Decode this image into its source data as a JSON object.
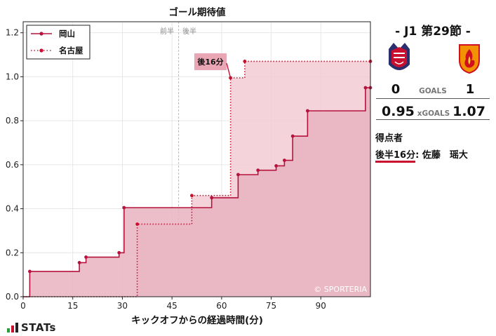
{
  "chart_data": {
    "type": "step",
    "title": "ゴール期待値",
    "xlabel": "キックオフからの経過時間(分)",
    "ylabel": "",
    "xlim": [
      0,
      105
    ],
    "ylim": [
      0,
      1.25
    ],
    "xticks": [
      0,
      15,
      30,
      45,
      60,
      75,
      90
    ],
    "yticks": [
      0.0,
      0.2,
      0.4,
      0.6,
      0.8,
      1.0,
      1.2
    ],
    "grid": true,
    "legend_position": "top-left",
    "halftime_labels": {
      "first": "前半",
      "second": "後半",
      "x": 47
    },
    "annotation": {
      "text": "後16分",
      "x": 62.7,
      "y": 0.995
    },
    "watermark": "© SPORTERIA",
    "series": [
      {
        "name": "岡山",
        "style": "solid",
        "color": "#b5123c",
        "fill": "#e7b3c1",
        "points": [
          [
            2,
            0.115
          ],
          [
            17,
            0.155
          ],
          [
            19,
            0.18
          ],
          [
            29,
            0.2
          ],
          [
            30.5,
            0.405
          ],
          [
            57,
            0.45
          ],
          [
            65,
            0.555
          ],
          [
            71,
            0.575
          ],
          [
            76.5,
            0.595
          ],
          [
            79,
            0.62
          ],
          [
            81.5,
            0.73
          ],
          [
            86,
            0.845
          ],
          [
            103.5,
            0.95
          ],
          [
            105,
            0.95
          ]
        ]
      },
      {
        "name": "名古屋",
        "style": "dotted",
        "color": "#c8102e",
        "fill": "#f3cbd4",
        "points": [
          [
            34.5,
            0.33
          ],
          [
            51,
            0.46
          ],
          [
            62.7,
            0.995
          ],
          [
            67,
            1.07
          ],
          [
            105,
            1.07
          ]
        ]
      }
    ]
  },
  "match": {
    "title": "- J1 第29節 -",
    "home_score": "0",
    "away_score": "1",
    "goals_label": "GOALS",
    "home_xg": "0.95",
    "away_xg": "1.07",
    "xg_label": "xGOALS"
  },
  "scorers": {
    "title": "得点者",
    "time": "後半16分",
    "sep": ":",
    "player": "佐藤　瑶大"
  },
  "brand": {
    "logo_text": "STATs"
  }
}
